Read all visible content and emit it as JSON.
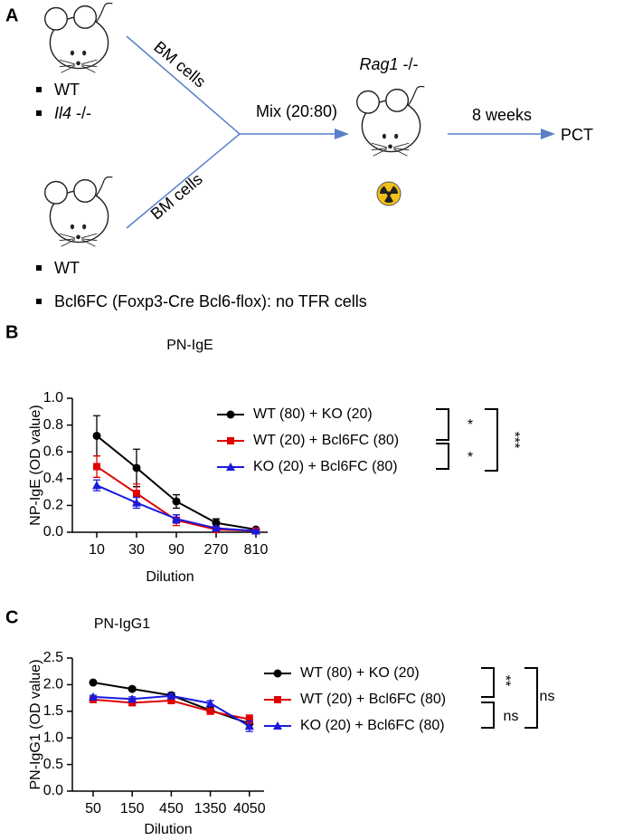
{
  "panel_labels": [
    "A",
    "B",
    "C"
  ],
  "diagram": {
    "donor1": {
      "label": "BM cells",
      "bullets": [
        {
          "text": "WT"
        },
        {
          "italic": "Il4",
          "rest": " -/-"
        }
      ]
    },
    "donor2": {
      "label": "BM cells",
      "bullets": [
        {
          "text": "WT"
        },
        {
          "text": "Bcl6FC (Foxp3-Cre Bcl6-flox): no TFR cells"
        }
      ]
    },
    "mix": "Mix (20:80)",
    "recipient": {
      "italic": "Rag1",
      "rest": " -/-"
    },
    "time": "8 weeks",
    "outcome": "PCT"
  },
  "chart_data": [
    {
      "type": "line",
      "title": "PN-IgE",
      "x_label": "Dilution",
      "y_label": "NP-IgE (OD value)",
      "categories": [
        "10",
        "30",
        "90",
        "270",
        "810"
      ],
      "ylim": [
        0,
        1.0
      ],
      "yticks": [
        {
          "value": 0,
          "label": "0.0"
        },
        0.2,
        0.4,
        0.6,
        0.8,
        {
          "value": 1.0,
          "label": "1.0"
        }
      ],
      "series": [
        {
          "name": "WT (80) + KO (20)",
          "color": "#000000",
          "marker": "circle",
          "values": [
            0.72,
            0.48,
            0.23,
            0.07,
            0.02
          ],
          "errors": [
            0.15,
            0.14,
            0.05,
            0.03,
            0.01
          ]
        },
        {
          "name": "WT (20) + Bcl6FC (80)",
          "color": "#e00000",
          "marker": "square",
          "values": [
            0.49,
            0.29,
            0.09,
            0.02,
            0.01
          ],
          "errors": [
            0.08,
            0.07,
            0.04,
            0.01,
            0.005
          ]
        },
        {
          "name": "KO (20) + Bcl6FC (80)",
          "color": "#1a1adf",
          "marker": "triangle",
          "values": [
            0.35,
            0.22,
            0.1,
            0.03,
            0.01
          ],
          "errors": [
            0.04,
            0.04,
            0.03,
            0.01,
            0.005
          ]
        }
      ],
      "annotations": [
        "*",
        "*",
        "***"
      ]
    },
    {
      "type": "line",
      "title": "PN-IgG1",
      "x_label": "Dilution",
      "y_label": "PN-IgG1 (OD value)",
      "categories": [
        "50",
        "150",
        "450",
        "1350",
        "4050"
      ],
      "ylim": [
        0,
        2.5
      ],
      "yticks": [
        {
          "value": 0,
          "label": "0.0"
        },
        0.5,
        {
          "value": 1.0,
          "label": "1.0"
        },
        1.5,
        {
          "value": 2.0,
          "label": "2.0"
        },
        2.5
      ],
      "series": [
        {
          "name": "WT (80) + KO (20)",
          "color": "#000000",
          "marker": "circle",
          "values": [
            2.04,
            1.92,
            1.8,
            1.52,
            1.27
          ],
          "errors": [
            0.02,
            0.03,
            0.05,
            0.05,
            0.08
          ]
        },
        {
          "name": "WT (20) + Bcl6FC (80)",
          "color": "#e00000",
          "marker": "square",
          "values": [
            1.72,
            1.66,
            1.7,
            1.5,
            1.35
          ],
          "errors": [
            0.04,
            0.05,
            0.05,
            0.05,
            0.08
          ]
        },
        {
          "name": "KO (20) + Bcl6FC (80)",
          "color": "#1a1adf",
          "marker": "triangle",
          "values": [
            1.77,
            1.73,
            1.79,
            1.65,
            1.22
          ],
          "errors": [
            0.03,
            0.04,
            0.04,
            0.05,
            0.1
          ]
        }
      ],
      "annotations": [
        "**",
        "ns",
        "ns"
      ]
    }
  ]
}
